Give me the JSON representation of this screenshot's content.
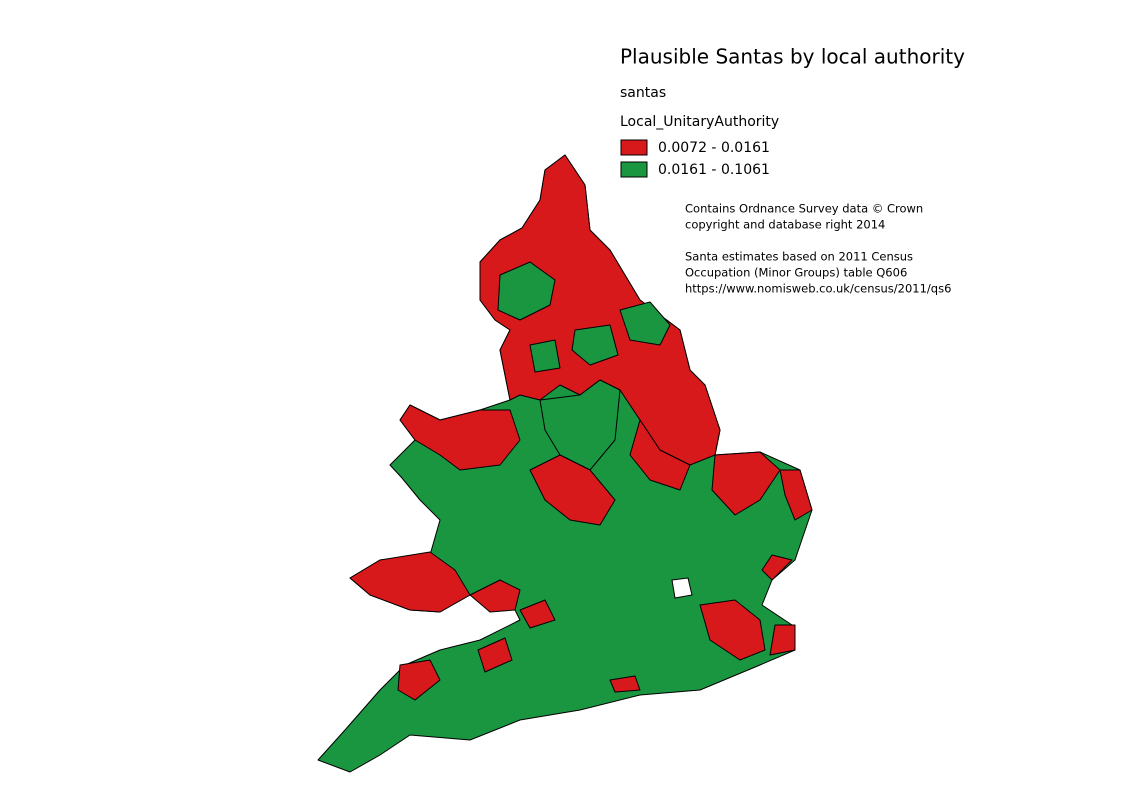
{
  "title": "Plausible Santas by local authority",
  "layer": "santas",
  "field": "Local_UnitaryAuthority",
  "legend": [
    {
      "label": "0.0072 - 0.0161",
      "color": "#d7191c"
    },
    {
      "label": "0.0161 - 0.1061",
      "color": "#1a9641"
    }
  ],
  "attribution": {
    "copyright": [
      "Contains Ordnance Survey data © Crown",
      "copyright and database right 2014"
    ],
    "source": [
      "Santa estimates based on 2011 Census",
      "Occupation (Minor Groups) table Q606",
      "https://www.nomisweb.co.uk/census/2011/qs6"
    ]
  }
}
